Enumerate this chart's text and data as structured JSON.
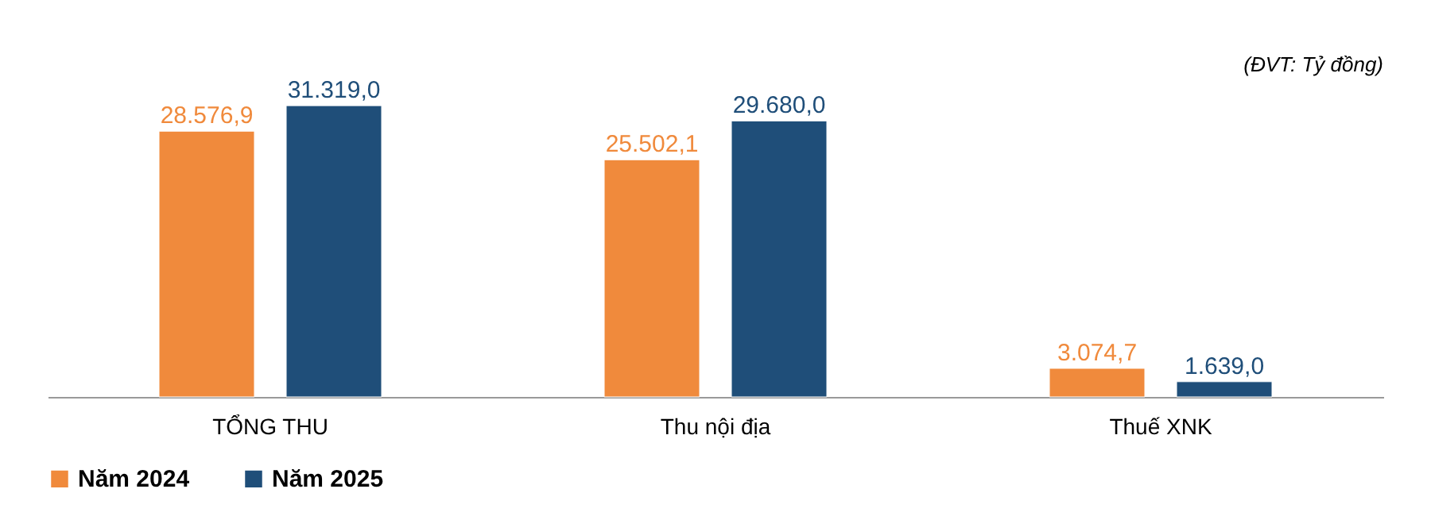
{
  "chart_data": {
    "type": "bar",
    "categories": [
      "TỔNG THU",
      "Thu nội địa",
      "Thuế XNK"
    ],
    "series": [
      {
        "name": "Năm 2024",
        "color": "#f08a3c",
        "values": [
          28576.9,
          25502.1,
          3074.7
        ],
        "value_labels": [
          "28.576,9",
          "25.502,1",
          "3.074,7"
        ]
      },
      {
        "name": "Năm 2025",
        "color": "#1f4e79",
        "values": [
          31319.0,
          29680.0,
          1639.0
        ],
        "value_labels": [
          "31.319,0",
          "29.680,0",
          "1.639,0"
        ]
      }
    ],
    "annotations": [
      "(ĐVT: Tỷ đồng)"
    ],
    "legend": "bottom",
    "grid": false
  }
}
